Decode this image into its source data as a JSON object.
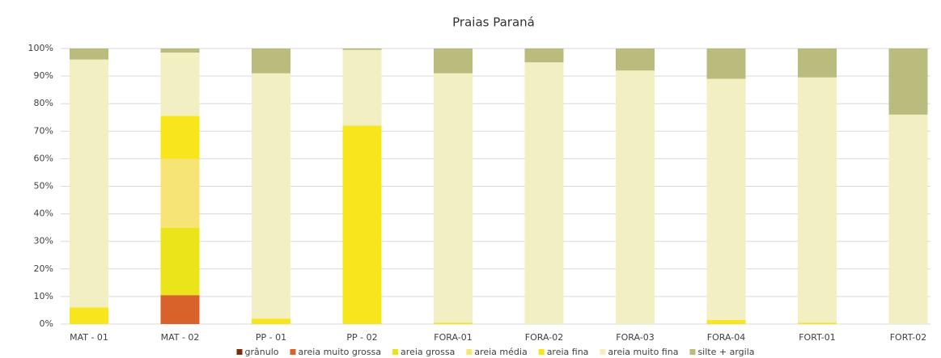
{
  "chart_data": {
    "type": "stacked_bar",
    "title": "Praias Paraná",
    "categories": [
      "MAT - 01",
      "MAT - 02",
      "PP - 01",
      "PP - 02",
      "FORA-01",
      "FORA-02",
      "FORA-03",
      "FORA-04",
      "FORT-01",
      "FORT-02"
    ],
    "series": [
      {
        "name": "grânulo",
        "color": "#7b2c0e",
        "values": [
          0,
          0,
          0,
          0,
          0,
          0,
          0,
          0,
          0,
          0
        ]
      },
      {
        "name": "areia muito grossa",
        "color": "#d9622b",
        "values": [
          0,
          10.5,
          0,
          0,
          0,
          0,
          0,
          0,
          0,
          0
        ]
      },
      {
        "name": "areia grossa",
        "color": "#ebe41a",
        "values": [
          0,
          24.5,
          0,
          0,
          0,
          0,
          0,
          0,
          0,
          0
        ]
      },
      {
        "name": "areia média",
        "color": "#f6e574",
        "values": [
          0,
          25,
          0,
          0,
          0,
          0,
          0,
          0,
          0,
          0
        ]
      },
      {
        "name": "areia fina",
        "color": "#f8e51c",
        "values": [
          6,
          15.5,
          2,
          72,
          0.5,
          0,
          0,
          1.5,
          0.5,
          0
        ]
      },
      {
        "name": "areia muito fina",
        "color": "#f2efc2",
        "values": [
          90,
          23,
          89,
          27.5,
          90.5,
          95,
          92,
          87.5,
          89,
          76
        ]
      },
      {
        "name": "silte + argila",
        "color": "#b9bc7c",
        "values": [
          4,
          1.5,
          9,
          0.5,
          9,
          5,
          8,
          11,
          10.5,
          24
        ]
      }
    ],
    "ylim": [
      0,
      100
    ],
    "yticks": [
      {
        "value": 0,
        "label": "0%"
      },
      {
        "value": 10,
        "label": "10%"
      },
      {
        "value": 20,
        "label": "20%"
      },
      {
        "value": 30,
        "label": "30%"
      },
      {
        "value": 40,
        "label": "40%"
      },
      {
        "value": 50,
        "label": "50%"
      },
      {
        "value": 60,
        "label": "60%"
      },
      {
        "value": 70,
        "label": "70%"
      },
      {
        "value": 80,
        "label": "80%"
      },
      {
        "value": 90,
        "label": "90%"
      },
      {
        "value": 100,
        "label": "100%"
      }
    ],
    "grid": true,
    "legend": "bottom"
  }
}
